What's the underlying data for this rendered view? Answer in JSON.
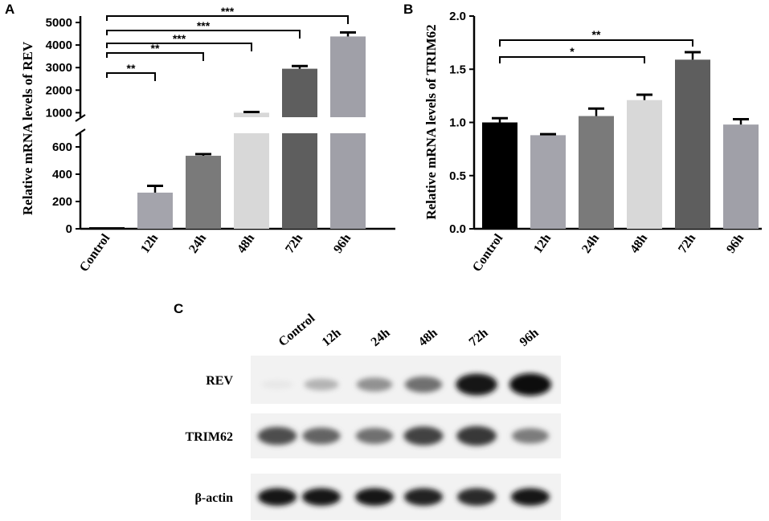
{
  "panels": {
    "a": "A",
    "b": "B",
    "c": "C"
  },
  "chart_data": [
    {
      "type": "bar",
      "ylabel": "Relative mRNA levels of REV",
      "categories": [
        "Control",
        "12h",
        "24h",
        "48h",
        "72h",
        "96h"
      ],
      "values": [
        0,
        265,
        535,
        1000,
        2950,
        4380
      ],
      "errors": [
        0,
        50,
        12,
        30,
        120,
        180
      ],
      "colors": [
        "#000000",
        "#a4a4ac",
        "#7a7a7a",
        "#d8d8d8",
        "#5e5e5e",
        "#a0a0a8"
      ],
      "axis_break": true,
      "lower_ticks": [
        "0",
        "200",
        "400",
        "600"
      ],
      "upper_ticks": [
        "1000",
        "2000",
        "3000",
        "4000",
        "5000"
      ],
      "significance": [
        {
          "from": "Control",
          "to": "12h",
          "label": "**"
        },
        {
          "from": "Control",
          "to": "24h",
          "label": "**"
        },
        {
          "from": "Control",
          "to": "48h",
          "label": "***"
        },
        {
          "from": "Control",
          "to": "72h",
          "label": "***"
        },
        {
          "from": "Control",
          "to": "96h",
          "label": "***"
        }
      ]
    },
    {
      "type": "bar",
      "ylabel": "Relative mRNA levels of TRIM62",
      "categories": [
        "Control",
        "12h",
        "24h",
        "48h",
        "72h",
        "96h"
      ],
      "values": [
        1.0,
        0.88,
        1.06,
        1.21,
        1.59,
        0.98
      ],
      "errors": [
        0.04,
        0.01,
        0.07,
        0.05,
        0.07,
        0.05
      ],
      "colors": [
        "#000000",
        "#a4a4ac",
        "#7a7a7a",
        "#d8d8d8",
        "#5e5e5e",
        "#a0a0a8"
      ],
      "ylim": [
        0,
        2.0
      ],
      "ticks": [
        "0.0",
        "0.5",
        "1.0",
        "1.5",
        "2.0"
      ],
      "significance": [
        {
          "from": "Control",
          "to": "48h",
          "label": "*"
        },
        {
          "from": "Control",
          "to": "72h",
          "label": "**"
        }
      ]
    }
  ],
  "blot": {
    "lanes": [
      "Control",
      "12h",
      "24h",
      "48h",
      "72h",
      "96h"
    ],
    "rows": [
      {
        "label": "REV",
        "intensities": [
          0.02,
          0.25,
          0.4,
          0.55,
          0.95,
          1.0
        ]
      },
      {
        "label": "TRIM62",
        "intensities": [
          0.7,
          0.6,
          0.55,
          0.75,
          0.8,
          0.5
        ]
      },
      {
        "label": "β-actin",
        "intensities": [
          0.95,
          0.95,
          0.95,
          0.9,
          0.85,
          0.95
        ]
      }
    ]
  }
}
